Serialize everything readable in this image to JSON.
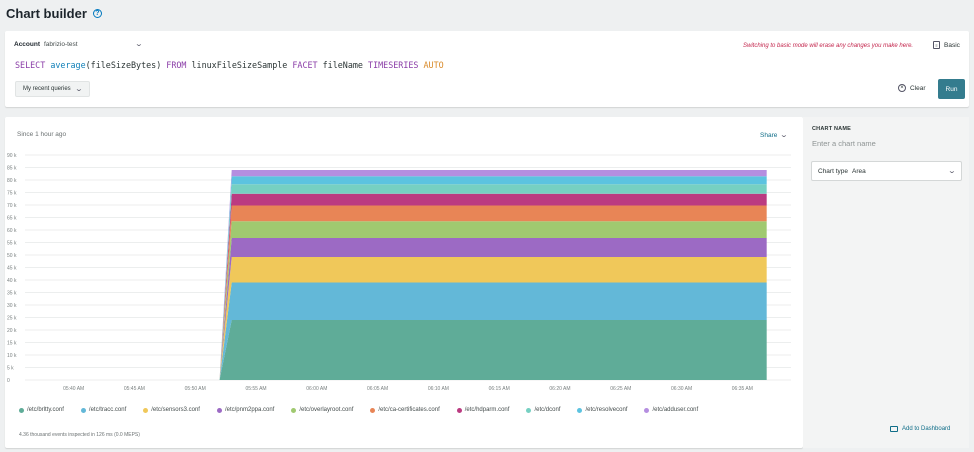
{
  "header": {
    "title": "Chart builder",
    "help_icon": "?"
  },
  "query": {
    "account_label": "Account",
    "account_value": "fabrizio-test",
    "warning": "Switching to basic mode will erase any changes you make here.",
    "basic_label": "Basic",
    "nrql": {
      "select": "SELECT",
      "fn": "average",
      "arg": "(fileSizeBytes)",
      "from": "FROM",
      "table": "linuxFileSizeSample",
      "facet": "FACET",
      "facet_attr": "fileName",
      "timeseries": "TIMESERIES",
      "auto": "AUTO"
    },
    "recent_queries_label": "My recent queries",
    "clear_label": "Clear",
    "run_label": "Run"
  },
  "chart_panel": {
    "since": "Since 1 hour ago",
    "share_label": "Share",
    "events_text": "4.36 thousand events inspected in 126 ms (0.0 MEPS)"
  },
  "chart_data": {
    "type": "area",
    "stacked": true,
    "x": [
      "05:40 AM",
      "05:45 AM",
      "05:50 AM",
      "05:55 AM",
      "06:00 AM",
      "06:05 AM",
      "06:10 AM",
      "06:15 AM",
      "06:20 AM",
      "06:25 AM",
      "06:30 AM",
      "06:35 AM"
    ],
    "y_ticks": [
      "0",
      "5 k",
      "10 k",
      "15 k",
      "20 k",
      "25 k",
      "30 k",
      "35 k",
      "40 k",
      "45 k",
      "50 k",
      "55 k",
      "60 k",
      "65 k",
      "70 k",
      "75 k",
      "80 k",
      "85 k",
      "90 k"
    ],
    "ylim": [
      0,
      90000
    ],
    "data_start": "05:52 AM",
    "data_ramp_end": "05:53 AM",
    "data_end": "06:37 AM",
    "series": [
      {
        "name": "/etc/brltty.conf",
        "color": "#5fac98",
        "value": 24000
      },
      {
        "name": "/etc/tracc.conf",
        "color": "#63b8d8",
        "value": 15000
      },
      {
        "name": "/etc/sensors3.conf",
        "color": "#f0c85a",
        "value": 10200
      },
      {
        "name": "/etc/pnm2ppa.conf",
        "color": "#9c6ac4",
        "value": 7600
      },
      {
        "name": "/etc/overlayroot.conf",
        "color": "#a0c970",
        "value": 6700
      },
      {
        "name": "/etc/ca-certificates.conf",
        "color": "#e88556",
        "value": 6300
      },
      {
        "name": "/etc/hdparm.conf",
        "color": "#bb3b81",
        "value": 4700
      },
      {
        "name": "/etc/dconf",
        "color": "#76d0c2",
        "value": 3800
      },
      {
        "name": "/etc/resolveconf",
        "color": "#5cc3e0",
        "value": 3200
      },
      {
        "name": "/etc/adduser.conf",
        "color": "#b58ee0",
        "value": 2500
      }
    ],
    "grid": true,
    "legend_position": "bottom"
  },
  "side_panel": {
    "chart_name_label": "CHART NAME",
    "chart_name_placeholder": "Enter a chart name",
    "chart_type_label": "Chart type",
    "chart_type_value": "Area",
    "add_dashboard_label": "Add to Dashboard"
  }
}
